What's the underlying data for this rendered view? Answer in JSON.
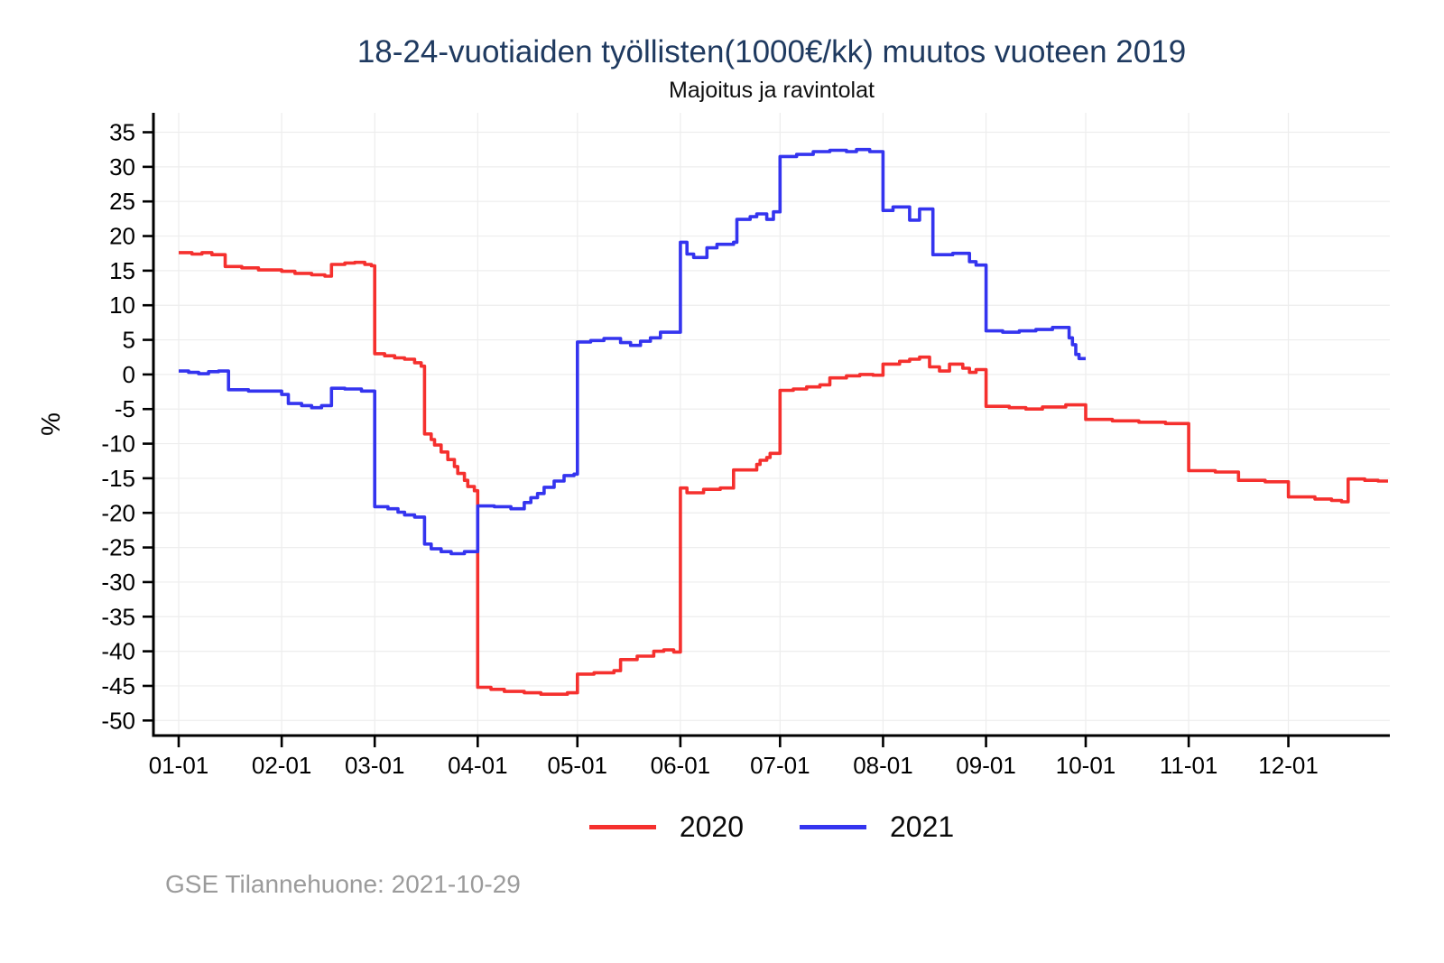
{
  "footer": {
    "source": "GSE Tilannehuone: 2021-10-29"
  },
  "chart_data": {
    "type": "line",
    "line_style": "step-after",
    "title": "18-24-vuotiaiden työllisten(1000€/kk) muutos vuoteen 2019",
    "subtitle": "Majoitus ja ravintolat",
    "ylabel": "%",
    "xlabel": "",
    "grid": true,
    "legend_position": "bottom",
    "ylim": [
      -52,
      38
    ],
    "y_ticks": [
      35,
      30,
      25,
      20,
      15,
      10,
      5,
      0,
      -5,
      -10,
      -15,
      -20,
      -25,
      -30,
      -35,
      -40,
      -45,
      -50
    ],
    "x_tick_labels": [
      "01-01",
      "02-01",
      "03-01",
      "04-01",
      "05-01",
      "06-01",
      "07-01",
      "08-01",
      "09-01",
      "10-01",
      "11-01",
      "12-01"
    ],
    "series": [
      {
        "name": "2020",
        "color": "#f5302e",
        "points": [
          [
            "01-01",
            17.6
          ],
          [
            "01-05",
            17.4
          ],
          [
            "01-08",
            17.6
          ],
          [
            "01-11",
            17.3
          ],
          [
            "01-15",
            15.6
          ],
          [
            "01-20",
            15.4
          ],
          [
            "01-25",
            15.1
          ],
          [
            "02-01",
            14.9
          ],
          [
            "02-05",
            14.6
          ],
          [
            "02-10",
            14.4
          ],
          [
            "02-14",
            14.2
          ],
          [
            "02-16",
            15.9
          ],
          [
            "02-20",
            16.1
          ],
          [
            "02-23",
            16.2
          ],
          [
            "02-26",
            15.9
          ],
          [
            "02-28",
            15.7
          ],
          [
            "03-01",
            3.0
          ],
          [
            "03-04",
            2.7
          ],
          [
            "03-07",
            2.4
          ],
          [
            "03-10",
            2.2
          ],
          [
            "03-13",
            1.7
          ],
          [
            "03-15",
            1.2
          ],
          [
            "03-16",
            -8.6
          ],
          [
            "03-18",
            -9.4
          ],
          [
            "03-19",
            -10.2
          ],
          [
            "03-21",
            -11.2
          ],
          [
            "03-23",
            -12.3
          ],
          [
            "03-25",
            -13.3
          ],
          [
            "03-26",
            -14.3
          ],
          [
            "03-28",
            -15.3
          ],
          [
            "03-29",
            -16.2
          ],
          [
            "03-31",
            -16.8
          ],
          [
            "04-01",
            -45.2
          ],
          [
            "04-05",
            -45.5
          ],
          [
            "04-09",
            -45.8
          ],
          [
            "04-15",
            -46.0
          ],
          [
            "04-20",
            -46.2
          ],
          [
            "04-28",
            -46.0
          ],
          [
            "05-01",
            -43.3
          ],
          [
            "05-06",
            -43.1
          ],
          [
            "05-12",
            -42.8
          ],
          [
            "05-14",
            -41.2
          ],
          [
            "05-19",
            -40.7
          ],
          [
            "05-24",
            -40.0
          ],
          [
            "05-27",
            -39.8
          ],
          [
            "05-30",
            -40.1
          ],
          [
            "06-01",
            -16.4
          ],
          [
            "06-03",
            -17.1
          ],
          [
            "06-08",
            -16.6
          ],
          [
            "06-13",
            -16.4
          ],
          [
            "06-17",
            -13.8
          ],
          [
            "06-24",
            -13.0
          ],
          [
            "06-25",
            -12.4
          ],
          [
            "06-27",
            -12.0
          ],
          [
            "06-28",
            -11.4
          ],
          [
            "07-01",
            -2.3
          ],
          [
            "07-05",
            -2.1
          ],
          [
            "07-09",
            -1.8
          ],
          [
            "07-13",
            -1.5
          ],
          [
            "07-16",
            -0.5
          ],
          [
            "07-21",
            -0.2
          ],
          [
            "07-25",
            0.0
          ],
          [
            "07-29",
            -0.1
          ],
          [
            "08-01",
            1.5
          ],
          [
            "08-06",
            1.9
          ],
          [
            "08-09",
            2.2
          ],
          [
            "08-12",
            2.5
          ],
          [
            "08-15",
            1.1
          ],
          [
            "08-18",
            0.5
          ],
          [
            "08-21",
            1.5
          ],
          [
            "08-25",
            0.9
          ],
          [
            "08-27",
            0.3
          ],
          [
            "08-29",
            0.7
          ],
          [
            "09-01",
            -4.6
          ],
          [
            "09-08",
            -4.8
          ],
          [
            "09-13",
            -5.0
          ],
          [
            "09-18",
            -4.7
          ],
          [
            "09-25",
            -4.4
          ],
          [
            "10-01",
            -6.5
          ],
          [
            "10-09",
            -6.7
          ],
          [
            "10-17",
            -6.9
          ],
          [
            "10-25",
            -7.1
          ],
          [
            "11-01",
            -13.9
          ],
          [
            "11-09",
            -14.1
          ],
          [
            "11-16",
            -15.3
          ],
          [
            "11-24",
            -15.5
          ],
          [
            "12-01",
            -17.7
          ],
          [
            "12-09",
            -18.0
          ],
          [
            "12-14",
            -18.2
          ],
          [
            "12-17",
            -18.4
          ],
          [
            "12-19",
            -15.1
          ],
          [
            "12-24",
            -15.3
          ],
          [
            "12-28",
            -15.4
          ],
          [
            "12-31",
            -15.4
          ]
        ]
      },
      {
        "name": "2021",
        "color": "#3434ef",
        "points": [
          [
            "01-01",
            0.5
          ],
          [
            "01-04",
            0.3
          ],
          [
            "01-07",
            0.1
          ],
          [
            "01-10",
            0.4
          ],
          [
            "01-13",
            0.5
          ],
          [
            "01-16",
            -2.2
          ],
          [
            "01-22",
            -2.4
          ],
          [
            "02-01",
            -2.9
          ],
          [
            "02-03",
            -4.2
          ],
          [
            "02-07",
            -4.5
          ],
          [
            "02-10",
            -4.8
          ],
          [
            "02-13",
            -4.5
          ],
          [
            "02-16",
            -2.0
          ],
          [
            "02-20",
            -2.1
          ],
          [
            "02-25",
            -2.4
          ],
          [
            "03-01",
            -19.1
          ],
          [
            "03-05",
            -19.4
          ],
          [
            "03-08",
            -19.9
          ],
          [
            "03-10",
            -20.3
          ],
          [
            "03-13",
            -20.6
          ],
          [
            "03-16",
            -24.5
          ],
          [
            "03-18",
            -25.2
          ],
          [
            "03-21",
            -25.6
          ],
          [
            "03-24",
            -25.9
          ],
          [
            "03-28",
            -25.6
          ],
          [
            "04-01",
            -19.0
          ],
          [
            "04-06",
            -19.1
          ],
          [
            "04-11",
            -19.4
          ],
          [
            "04-15",
            -18.5
          ],
          [
            "04-17",
            -17.8
          ],
          [
            "04-19",
            -17.2
          ],
          [
            "04-21",
            -16.3
          ],
          [
            "04-24",
            -15.4
          ],
          [
            "04-27",
            -14.6
          ],
          [
            "04-30",
            -14.4
          ],
          [
            "05-01",
            4.7
          ],
          [
            "05-05",
            4.9
          ],
          [
            "05-09",
            5.2
          ],
          [
            "05-14",
            4.6
          ],
          [
            "05-17",
            4.2
          ],
          [
            "05-20",
            4.8
          ],
          [
            "05-23",
            5.3
          ],
          [
            "05-26",
            6.1
          ],
          [
            "06-01",
            19.1
          ],
          [
            "06-03",
            17.4
          ],
          [
            "06-05",
            16.9
          ],
          [
            "06-09",
            18.3
          ],
          [
            "06-12",
            18.8
          ],
          [
            "06-17",
            19.1
          ],
          [
            "06-18",
            22.4
          ],
          [
            "06-22",
            22.8
          ],
          [
            "06-24",
            23.2
          ],
          [
            "06-27",
            22.4
          ],
          [
            "06-29",
            23.5
          ],
          [
            "07-01",
            31.5
          ],
          [
            "07-06",
            31.8
          ],
          [
            "07-11",
            32.2
          ],
          [
            "07-16",
            32.4
          ],
          [
            "07-21",
            32.2
          ],
          [
            "07-24",
            32.5
          ],
          [
            "07-28",
            32.2
          ],
          [
            "08-01",
            23.7
          ],
          [
            "08-04",
            24.2
          ],
          [
            "08-09",
            22.3
          ],
          [
            "08-12",
            23.9
          ],
          [
            "08-16",
            17.3
          ],
          [
            "08-22",
            17.5
          ],
          [
            "08-27",
            16.3
          ],
          [
            "08-29",
            15.8
          ],
          [
            "09-01",
            6.3
          ],
          [
            "09-06",
            6.1
          ],
          [
            "09-11",
            6.3
          ],
          [
            "09-16",
            6.5
          ],
          [
            "09-21",
            6.8
          ],
          [
            "09-26",
            5.3
          ],
          [
            "09-27",
            4.3
          ],
          [
            "09-28",
            2.9
          ],
          [
            "09-29",
            2.3
          ],
          [
            "10-01",
            2.3
          ]
        ]
      }
    ]
  }
}
